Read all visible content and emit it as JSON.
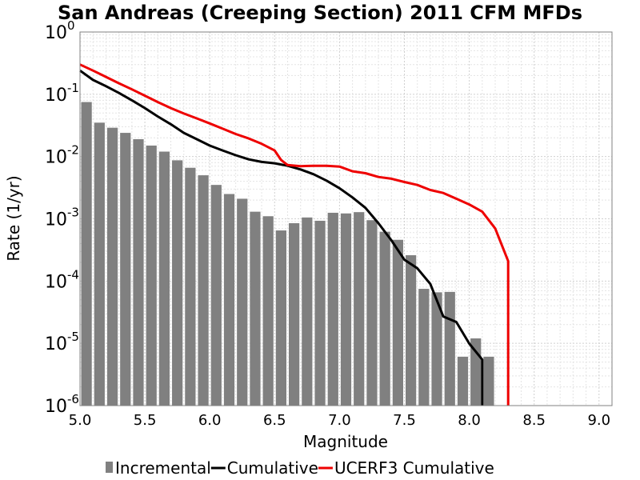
{
  "chart_data": {
    "type": "bar",
    "title": "San Andreas (Creeping Section) 2011 CFM MFDs",
    "xlabel": "Magnitude",
    "ylabel": "Rate (1/yr)",
    "xlim": [
      5.0,
      9.1
    ],
    "ylim": [
      1e-06,
      1
    ],
    "yscale": "log",
    "grid": true,
    "legend_position": "bottom",
    "x_ticks": [
      "5.0",
      "5.5",
      "6.0",
      "6.5",
      "7.0",
      "7.5",
      "8.0",
      "8.5",
      "9.0"
    ],
    "y_ticks": [
      {
        "base": "10",
        "exp": "0"
      },
      {
        "base": "10",
        "exp": "-1"
      },
      {
        "base": "10",
        "exp": "-2"
      },
      {
        "base": "10",
        "exp": "-3"
      },
      {
        "base": "10",
        "exp": "-4"
      },
      {
        "base": "10",
        "exp": "-5"
      },
      {
        "base": "10",
        "exp": "-6"
      }
    ],
    "series": [
      {
        "name": "Incremental",
        "kind": "bar",
        "color": "#808080",
        "x": [
          5.05,
          5.15,
          5.25,
          5.35,
          5.45,
          5.55,
          5.65,
          5.75,
          5.85,
          5.95,
          6.05,
          6.15,
          6.25,
          6.35,
          6.45,
          6.55,
          6.65,
          6.75,
          6.85,
          6.95,
          7.05,
          7.15,
          7.25,
          7.35,
          7.45,
          7.55,
          7.65,
          7.75,
          7.85,
          7.95,
          8.05,
          8.15
        ],
        "values": [
          0.075,
          0.035,
          0.029,
          0.024,
          0.019,
          0.015,
          0.012,
          0.0087,
          0.0066,
          0.005,
          0.0035,
          0.0025,
          0.0021,
          0.0013,
          0.0011,
          0.00065,
          0.00085,
          0.00105,
          0.00093,
          0.00125,
          0.00122,
          0.00128,
          0.00095,
          0.00062,
          0.00046,
          0.00026,
          7.5e-05,
          6.6e-05,
          6.7e-05,
          6.1e-06,
          1.2e-05,
          6.1e-06
        ]
      },
      {
        "name": "Cumulative",
        "kind": "line",
        "color": "#000000",
        "x": [
          5.0,
          5.1,
          5.2,
          5.3,
          5.4,
          5.5,
          5.6,
          5.7,
          5.8,
          5.9,
          6.0,
          6.1,
          6.2,
          6.3,
          6.4,
          6.5,
          6.6,
          6.7,
          6.8,
          6.9,
          7.0,
          7.1,
          7.2,
          7.3,
          7.4,
          7.5,
          7.6,
          7.7,
          7.8,
          7.9,
          8.0,
          8.1,
          8.1
        ],
        "values": [
          0.24,
          0.17,
          0.135,
          0.105,
          0.08,
          0.06,
          0.044,
          0.033,
          0.024,
          0.019,
          0.015,
          0.0125,
          0.0105,
          0.009,
          0.0082,
          0.0078,
          0.0071,
          0.0062,
          0.0052,
          0.0041,
          0.0031,
          0.0022,
          0.0015,
          0.00085,
          0.00045,
          0.00022,
          0.00016,
          9e-05,
          2.7e-05,
          2.2e-05,
          9.9e-06,
          5.5e-06,
          1e-06
        ]
      },
      {
        "name": "UCERF3 Cumulative",
        "kind": "line",
        "color": "#ee0000",
        "x": [
          5.0,
          5.1,
          5.2,
          5.3,
          5.4,
          5.5,
          5.6,
          5.7,
          5.8,
          5.9,
          6.0,
          6.1,
          6.2,
          6.3,
          6.4,
          6.5,
          6.55,
          6.6,
          6.7,
          6.8,
          6.9,
          7.0,
          7.1,
          7.2,
          7.3,
          7.4,
          7.5,
          7.6,
          7.7,
          7.8,
          7.9,
          8.0,
          8.1,
          8.2,
          8.3,
          8.3
        ],
        "values": [
          0.3,
          0.24,
          0.19,
          0.15,
          0.12,
          0.095,
          0.075,
          0.06,
          0.049,
          0.041,
          0.034,
          0.028,
          0.023,
          0.0195,
          0.016,
          0.0125,
          0.0088,
          0.0073,
          0.007,
          0.0071,
          0.0071,
          0.0069,
          0.0058,
          0.0054,
          0.0047,
          0.0044,
          0.0039,
          0.0035,
          0.0029,
          0.0026,
          0.0021,
          0.0017,
          0.0013,
          0.0007,
          0.00021,
          1e-06
        ]
      }
    ]
  }
}
